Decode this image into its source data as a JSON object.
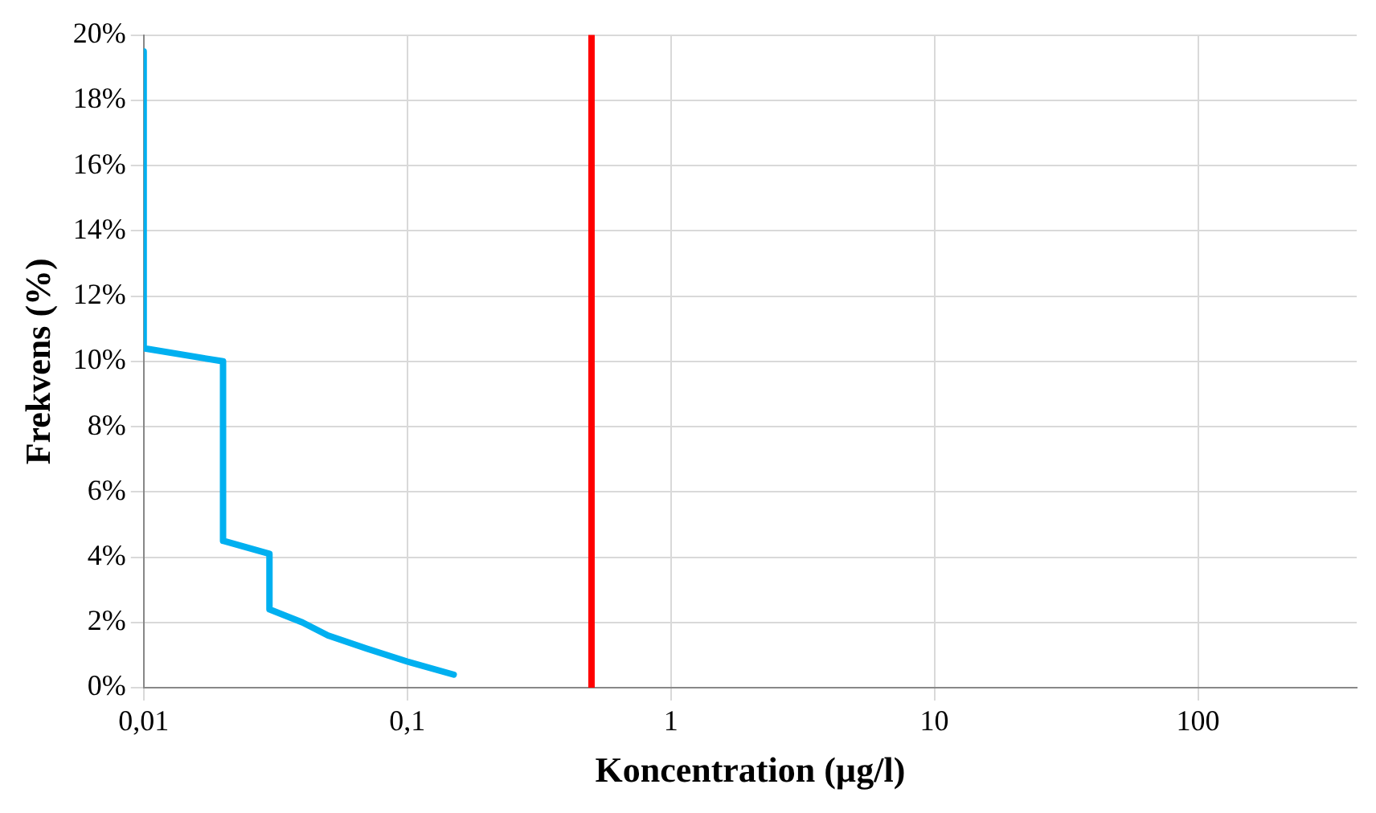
{
  "chart_data": {
    "type": "line",
    "xlabel": "Koncentration (µg/l)",
    "ylabel": "Frekvens (%)",
    "log": "x",
    "xlim": [
      0.01,
      400
    ],
    "xticks": [
      {
        "value": 0.01,
        "label": "0,01"
      },
      {
        "value": 0.1,
        "label": "0,1"
      },
      1,
      10,
      100
    ],
    "ylim": [
      0,
      20
    ],
    "yticks": [
      {
        "value": 0,
        "label": "0%"
      },
      {
        "value": 2,
        "label": "2%"
      },
      {
        "value": 4,
        "label": "4%"
      },
      {
        "value": 6,
        "label": "6%"
      },
      {
        "value": 8,
        "label": "8%"
      },
      {
        "value": 10,
        "label": "10%"
      },
      {
        "value": 12,
        "label": "12%"
      },
      {
        "value": 14,
        "label": "14%"
      },
      {
        "value": 16,
        "label": "16%"
      },
      {
        "value": 18,
        "label": "18%"
      },
      {
        "value": 20,
        "label": "20%"
      }
    ],
    "grid": true,
    "legend": false,
    "marker": "none",
    "line_style": "solid",
    "series": [
      {
        "color": "#00b0f0",
        "x": [
          0.01,
          0.01,
          0.02,
          0.02,
          0.03,
          0.03,
          0.04,
          0.05,
          0.07,
          0.1,
          0.15
        ],
        "values": [
          19.5,
          10.4,
          10.0,
          4.5,
          4.1,
          2.4,
          2.0,
          1.6,
          1.2,
          0.8,
          0.4
        ]
      }
    ],
    "ref_lines": [
      {
        "axis": "x",
        "value": 0.5,
        "color": "#ff0000"
      }
    ]
  }
}
